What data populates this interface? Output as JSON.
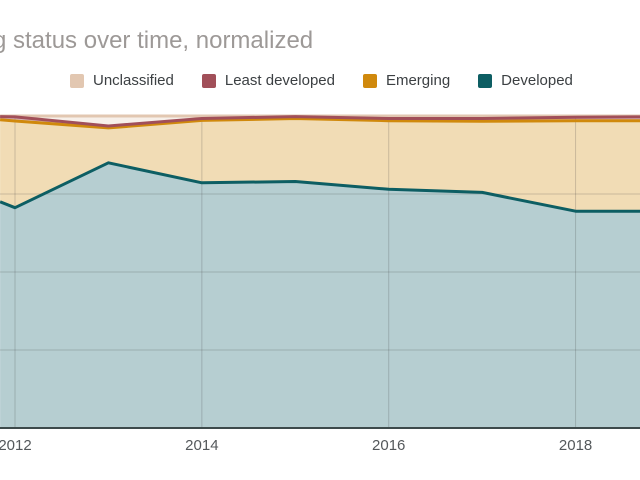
{
  "title": "g status over time, normalized",
  "chart_data": {
    "type": "area",
    "stacked": true,
    "normalized": true,
    "title": "g status over time, normalized",
    "legend_position": "top",
    "grid": true,
    "ylim": [
      0,
      100
    ],
    "x": [
      2011.84,
      2012,
      2013,
      2014,
      2015,
      2016,
      2017,
      2018,
      2018.69
    ],
    "x_tick_years": [
      2012,
      2014,
      2016,
      2018
    ],
    "x_tick_labels": [
      "2012",
      "2014",
      "2016",
      "2018"
    ],
    "series": [
      {
        "name": "Unclassified",
        "color": "#e2c7b1",
        "fill": "#f7f0ea",
        "values": [
          0.2,
          0.3,
          3.2,
          0.8,
          0.2,
          0.8,
          0.8,
          0.4,
          0.3
        ]
      },
      {
        "name": "Least developed",
        "color": "#a14f59",
        "fill": "#d6b6ba",
        "values": [
          1.0,
          1.3,
          0.6,
          0.6,
          0.6,
          0.7,
          0.9,
          1.1,
          1.2
        ]
      },
      {
        "name": "Emerging",
        "color": "#d0890c",
        "fill": "#f1dcb5",
        "values": [
          26.3,
          27.8,
          11.2,
          20.0,
          20.2,
          22.0,
          22.8,
          29.0,
          29.0
        ]
      },
      {
        "name": "Developed",
        "color": "#0d5e63",
        "fill": "#b6ced1",
        "values": [
          72.5,
          70.6,
          85.0,
          78.6,
          79.0,
          76.5,
          75.5,
          69.5,
          69.5
        ]
      }
    ],
    "stack_order_bottom_to_top": [
      "Developed",
      "Emerging",
      "Least developed",
      "Unclassified"
    ],
    "line_draw_order": [
      "Developed",
      "Unclassified",
      "Emerging",
      "Least developed"
    ],
    "gridline_color": "rgba(60,60,60,0.22)",
    "baseline_color": "#3d4a4b"
  }
}
